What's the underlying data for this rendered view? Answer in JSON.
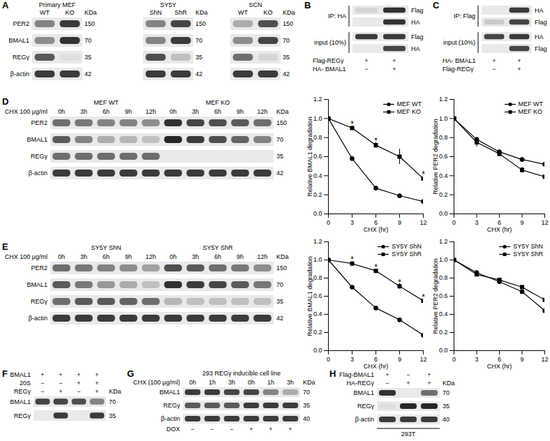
{
  "panels": [
    {
      "label": "A",
      "row_names": [
        "PER2",
        "BMAL1",
        "REGγ",
        "β-actin"
      ],
      "kda": [
        150,
        70,
        35,
        42
      ],
      "kda_unit": "KDa",
      "blots": [
        {
          "title": "Primary MEF",
          "lanes": [
            "WT",
            "KO"
          ],
          "bands": [
            [
              0.5,
              0.85
            ],
            [
              0.45,
              0.9
            ],
            [
              0.7,
              0.05
            ],
            [
              0.85,
              0.85
            ]
          ]
        },
        {
          "title": "SY5Y",
          "lanes": [
            "ShN",
            "ShR"
          ],
          "bands": [
            [
              0.5,
              0.8
            ],
            [
              0.5,
              0.85
            ],
            [
              0.75,
              0.2
            ],
            [
              0.85,
              0.85
            ]
          ]
        },
        {
          "title": "SCN",
          "lanes": [
            "WT",
            "KO"
          ],
          "bands": [
            [
              0.3,
              0.75
            ],
            [
              0.45,
              0.8
            ],
            [
              0.6,
              0.1
            ],
            [
              0.85,
              0.85
            ]
          ]
        }
      ]
    },
    {
      "label": "B",
      "sections": [
        {
          "name": "IP: HA",
          "rows": [
            {
              "name": "Flag",
              "bands": [
                0.1,
                0.9
              ]
            },
            {
              "name": "HA",
              "bands": [
                0,
                0.9
              ]
            }
          ]
        },
        {
          "name": "input (10%)",
          "rows": [
            {
              "name": "Flag",
              "bands": [
                0.85,
                0.85
              ]
            },
            {
              "name": "HA",
              "bands": [
                0,
                0.8
              ]
            }
          ]
        }
      ],
      "footers": [
        {
          "name": "Flag-REGγ",
          "cells": [
            "+",
            "+"
          ]
        },
        {
          "name": "HA- BMAL1",
          "cells": [
            "−",
            "+"
          ]
        }
      ]
    },
    {
      "label": "C",
      "sections": [
        {
          "name": "IP: Flag",
          "rows": [
            {
              "name": "HA",
              "bands": [
                0,
                0.85
              ]
            },
            {
              "name": "Flag",
              "bands": [
                0.15,
                0.8
              ]
            }
          ]
        },
        {
          "name": "input (10%)",
          "rows": [
            {
              "name": "HA",
              "bands": [
                0.8,
                0.85
              ]
            },
            {
              "name": "Flag",
              "bands": [
                0,
                0.8
              ]
            }
          ]
        }
      ],
      "footers": [
        {
          "name": "HA- BMAL1",
          "cells": [
            "+",
            "+"
          ]
        },
        {
          "name": "Flag-REGγ",
          "cells": [
            "−",
            "+"
          ]
        }
      ]
    },
    {
      "label": "D",
      "groups": [
        "MEF WT",
        "MEF KO"
      ],
      "headers": [
        {
          "name": "CHX 100 μg/ml",
          "cells": [
            "0h",
            "3h",
            "6h",
            "9h",
            "12h",
            "0h",
            "3h",
            "6h",
            "9h",
            "12h"
          ]
        }
      ],
      "kda_unit": "KDa",
      "rows": [
        {
          "name": "PER2",
          "kda": 150,
          "bands": [
            0.6,
            0.55,
            0.5,
            0.5,
            0.45,
            0.9,
            0.8,
            0.75,
            0.7,
            0.6
          ]
        },
        {
          "name": "BMAL1",
          "kda": 70,
          "bands": [
            0.7,
            0.5,
            0.3,
            0.25,
            0.2,
            0.95,
            0.85,
            0.75,
            0.65,
            0.5
          ]
        },
        {
          "name": "REGγ",
          "kda": 35,
          "bands": [
            0.6,
            0.6,
            0.6,
            0.6,
            0.6,
            0,
            0,
            0,
            0,
            0
          ]
        },
        {
          "name": "β-actin",
          "kda": 42,
          "bands": [
            0.85,
            0.85,
            0.85,
            0.85,
            0.85,
            0.85,
            0.85,
            0.85,
            0.85,
            0.85
          ]
        }
      ]
    },
    {
      "label": "E",
      "groups": [
        "SY5Y ShN",
        "SY5Y ShR"
      ],
      "headers": [
        {
          "name": "CHX 100 μg/ml",
          "cells": [
            "0h",
            "3h",
            "6h",
            "9h",
            "12h",
            "0h",
            "3h",
            "6h",
            "9h",
            "12h"
          ]
        }
      ],
      "kda_unit": "KDa",
      "rows": [
        {
          "name": "PER2",
          "kda": 150,
          "bands": [
            0.6,
            0.55,
            0.5,
            0.45,
            0.35,
            0.75,
            0.7,
            0.6,
            0.55,
            0.45
          ]
        },
        {
          "name": "BMAL1",
          "kda": 70,
          "bands": [
            0.7,
            0.55,
            0.4,
            0.3,
            0.2,
            0.9,
            0.85,
            0.8,
            0.7,
            0.55
          ]
        },
        {
          "name": "REGγ",
          "kda": 35,
          "bands": [
            0.6,
            0.7,
            0.7,
            0.65,
            0.6,
            0.25,
            0.2,
            0.2,
            0.2,
            0.2
          ]
        },
        {
          "name": "β-actin",
          "kda": 42,
          "bands": [
            0.85,
            0.85,
            0.85,
            0.85,
            0.85,
            0.85,
            0.85,
            0.85,
            0.85,
            0.85
          ]
        }
      ]
    },
    {
      "label": "F",
      "headers": [
        {
          "name": "BMAL1",
          "cells": [
            "+",
            "+",
            "+",
            "+"
          ]
        },
        {
          "name": "20S",
          "cells": [
            "−",
            "−",
            "+",
            "+"
          ]
        },
        {
          "name": "REGγ",
          "cells": [
            "−",
            "+",
            "−",
            "+"
          ]
        }
      ],
      "kda_unit": "KDa",
      "rows": [
        {
          "name": "BMAL1",
          "kda": 70,
          "bands": [
            0.8,
            0.8,
            0.75,
            0.5
          ]
        },
        {
          "name": "REGγ",
          "kda": 35,
          "bands": [
            0,
            0.85,
            0,
            0.85
          ]
        }
      ]
    },
    {
      "label": "G",
      "title": "293 REGγ inducible cell line",
      "headers": [
        {
          "name": "CHX (100 μg/ml)",
          "cells": [
            "0h",
            "1h",
            "3h",
            "0h",
            "1h",
            "3h"
          ]
        }
      ],
      "kda_unit": "KDa",
      "rows": [
        {
          "name": "BMAL1",
          "kda": 70,
          "bands": [
            0.85,
            0.85,
            0.8,
            0.8,
            0.5,
            0.3
          ]
        },
        {
          "name": "REGγ",
          "kda": 35,
          "bands": [
            0.7,
            0.7,
            0.7,
            0.85,
            0.85,
            0.85
          ]
        },
        {
          "name": "β-actin",
          "kda": 40,
          "bands": [
            0.85,
            0.85,
            0.85,
            0.85,
            0.85,
            0.85
          ]
        }
      ],
      "footers": [
        {
          "name": "DOX",
          "cells": [
            "−",
            "−",
            "−",
            "+",
            "+",
            "+"
          ]
        }
      ]
    },
    {
      "label": "H",
      "headers": [
        {
          "name": "Flag-BMAL1",
          "cells": [
            "+",
            "−",
            "+"
          ]
        },
        {
          "name": "HA-REGγ",
          "cells": [
            "−",
            "+",
            "+"
          ]
        }
      ],
      "kda_unit": "KDa",
      "rows": [
        {
          "name": "BMAL1",
          "kda": 70,
          "bands": [
            0.9,
            0,
            0.6
          ]
        },
        {
          "name": "REGγ",
          "kda": 35,
          "bands": [
            0.05,
            0.95,
            0.95
          ]
        },
        {
          "name": "β-actin",
          "kda": 40,
          "bands": [
            0.85,
            0.85,
            0.85
          ]
        }
      ],
      "caption": "293T"
    }
  ],
  "chart_data": [
    {
      "type": "line",
      "xlabel": "CHX (hr)",
      "ylabel": "Relative BMAL1 degradation",
      "x": [
        0,
        3,
        6,
        9,
        12
      ],
      "xlim": [
        0,
        12
      ],
      "xticks": [
        0,
        3,
        6,
        9,
        12
      ],
      "ylim": [
        0,
        1.2
      ],
      "yticks": [
        {
          "value": 0,
          "label": "0.0"
        },
        {
          "value": 0.2,
          "label": "0.2"
        },
        {
          "value": 0.4,
          "label": "0.4"
        },
        {
          "value": 0.6,
          "label": "0.6"
        },
        {
          "value": 0.8,
          "label": "0.8"
        },
        {
          "value": 1,
          "label": "1.0"
        },
        {
          "value": 1.2,
          "label": "1.2"
        }
      ],
      "grid": false,
      "legend": "top-right",
      "series": [
        {
          "name": "MEF WT",
          "color": "#000000",
          "marker": "circle",
          "values": [
            1,
            0.58,
            0.27,
            0.19,
            0.13
          ],
          "errors": [
            0,
            0.01,
            0.01,
            0.01,
            0.01
          ]
        },
        {
          "name": "MEF KO",
          "color": "#000000",
          "marker": "square",
          "values": [
            1,
            0.9,
            0.72,
            0.6,
            0.37
          ],
          "errors": [
            0,
            0.02,
            0.03,
            0.08,
            0.03
          ]
        }
      ],
      "annotations": [
        {
          "x": 3,
          "y": 0.97,
          "text": "*"
        },
        {
          "x": 6,
          "y": 0.79,
          "text": "*"
        },
        {
          "x": 12,
          "y": 0.44,
          "text": "*"
        }
      ]
    },
    {
      "type": "line",
      "xlabel": "CHX (hr)",
      "ylabel": "Relative PER2 degradation",
      "x": [
        0,
        3,
        6,
        9,
        12
      ],
      "xlim": [
        0,
        12
      ],
      "xticks": [
        0,
        3,
        6,
        9,
        12
      ],
      "ylim": [
        0,
        1.2
      ],
      "yticks": [
        {
          "value": 0,
          "label": "0.0"
        },
        {
          "value": 0.2,
          "label": "0.2"
        },
        {
          "value": 0.4,
          "label": "0.4"
        },
        {
          "value": 0.6,
          "label": "0.6"
        },
        {
          "value": 0.8,
          "label": "0.8"
        },
        {
          "value": 1,
          "label": "1.0"
        },
        {
          "value": 1.2,
          "label": "1.2"
        }
      ],
      "grid": false,
      "legend": "top-right",
      "series": [
        {
          "name": "MEF WT",
          "color": "#000000",
          "marker": "circle",
          "values": [
            1,
            0.78,
            0.65,
            0.57,
            0.52
          ],
          "errors": [
            0,
            0.02,
            0.02,
            0.02,
            0.05
          ]
        },
        {
          "name": "MEF KO",
          "color": "#000000",
          "marker": "square",
          "values": [
            1,
            0.75,
            0.63,
            0.46,
            0.39
          ],
          "errors": [
            0,
            0.05,
            0.03,
            0.03,
            0.03
          ]
        }
      ]
    },
    {
      "type": "line",
      "xlabel": "CHX (hr)",
      "ylabel": "Relative BMAL1 degradation",
      "x": [
        0,
        3,
        6,
        9,
        12
      ],
      "xlim": [
        0,
        12
      ],
      "xticks": [
        0,
        3,
        6,
        9,
        12
      ],
      "ylim": [
        0,
        1.2
      ],
      "yticks": [
        {
          "value": 0,
          "label": "0.0"
        },
        {
          "value": 0.2,
          "label": "0.2"
        },
        {
          "value": 0.4,
          "label": "0.4"
        },
        {
          "value": 0.6,
          "label": "0.6"
        },
        {
          "value": 0.8,
          "label": "0.8"
        },
        {
          "value": 1,
          "label": "1.0"
        },
        {
          "value": 1.2,
          "label": "1.2"
        }
      ],
      "grid": false,
      "legend": "top-right",
      "series": [
        {
          "name": "SY5Y ShN",
          "color": "#000000",
          "marker": "circle",
          "values": [
            1,
            0.7,
            0.47,
            0.34,
            0.17
          ],
          "errors": [
            0,
            0.01,
            0.01,
            0.01,
            0.01
          ]
        },
        {
          "name": "SY5Y ShR",
          "color": "#000000",
          "marker": "square",
          "values": [
            1,
            0.96,
            0.88,
            0.71,
            0.55
          ],
          "errors": [
            0,
            0.02,
            0.02,
            0.03,
            0.03
          ]
        }
      ],
      "annotations": [
        {
          "x": 3,
          "y": 1.03,
          "text": "*"
        },
        {
          "x": 6,
          "y": 0.95,
          "text": "*"
        },
        {
          "x": 9,
          "y": 0.78,
          "text": "*"
        },
        {
          "x": 12,
          "y": 0.62,
          "text": "*"
        }
      ]
    },
    {
      "type": "line",
      "xlabel": "CHX (hr)",
      "ylabel": "Relative PER2 degradation",
      "x": [
        0,
        3,
        6,
        9,
        12
      ],
      "xlim": [
        0,
        12
      ],
      "xticks": [
        0,
        3,
        6,
        9,
        12
      ],
      "ylim": [
        0,
        1.2
      ],
      "yticks": [
        {
          "value": 0,
          "label": "0.0"
        },
        {
          "value": 0.2,
          "label": "0.2"
        },
        {
          "value": 0.4,
          "label": "0.4"
        },
        {
          "value": 0.6,
          "label": "0.6"
        },
        {
          "value": 0.8,
          "label": "0.8"
        },
        {
          "value": 1,
          "label": "1.0"
        },
        {
          "value": 1.2,
          "label": "1.2"
        }
      ],
      "grid": false,
      "legend": "top-right",
      "series": [
        {
          "name": "SY5Y ShN",
          "color": "#000000",
          "marker": "circle",
          "values": [
            1,
            0.86,
            0.76,
            0.65,
            0.44
          ],
          "errors": [
            0,
            0.01,
            0.01,
            0.02,
            0.01
          ]
        },
        {
          "name": "SY5Y ShR",
          "color": "#000000",
          "marker": "square",
          "values": [
            1,
            0.84,
            0.78,
            0.7,
            0.56
          ],
          "errors": [
            0,
            0.01,
            0.01,
            0.02,
            0.01
          ]
        }
      ]
    }
  ]
}
